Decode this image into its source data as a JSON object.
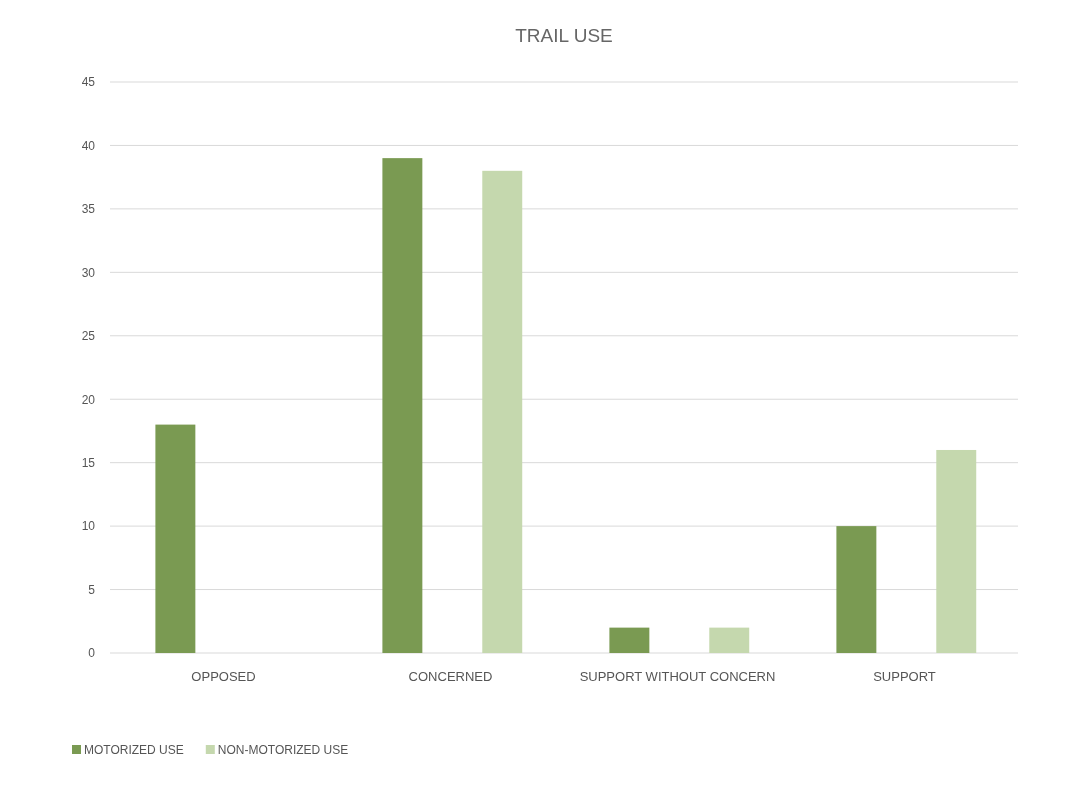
{
  "chart_data": {
    "type": "bar",
    "title": "TRAIL USE",
    "categories": [
      "OPPOSED",
      "CONCERNED",
      "SUPPORT WITHOUT CONCERN",
      "SUPPORT"
    ],
    "series": [
      {
        "name": "MOTORIZED USE",
        "color": "#7a9a52",
        "values": [
          18,
          39,
          2,
          10
        ]
      },
      {
        "name": "NON-MOTORIZED USE",
        "color": "#c5d8ae",
        "values": [
          0,
          38,
          2,
          16
        ]
      }
    ],
    "ylim": [
      0,
      45
    ],
    "yticks": [
      0,
      5,
      10,
      15,
      20,
      25,
      30,
      35,
      40,
      45
    ],
    "grid": "y",
    "legend": "bottom left"
  }
}
